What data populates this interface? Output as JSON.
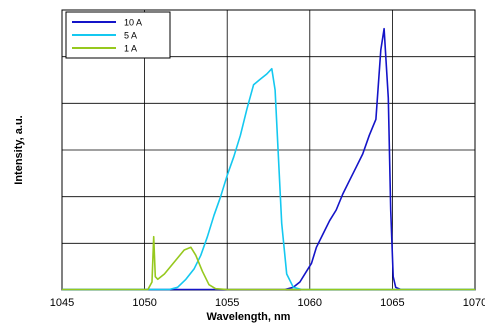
{
  "chart_data": {
    "type": "line",
    "title": "",
    "xlabel": "Wavelength, nm",
    "ylabel": "Intensity, a.u.",
    "xlim": [
      1045,
      1070
    ],
    "x_ticks": [
      1045,
      1050,
      1055,
      1060,
      1065,
      1070
    ],
    "ylim": [
      0,
      1.05
    ],
    "y_tick_labels_shown": false,
    "grid": true,
    "legend_position": "top-left",
    "series": [
      {
        "name": "10 A",
        "color": "#1414c8",
        "points": [
          [
            1045,
            0.002
          ],
          [
            1058.5,
            0.002
          ],
          [
            1059.0,
            0.01
          ],
          [
            1059.4,
            0.03
          ],
          [
            1059.8,
            0.07
          ],
          [
            1060.1,
            0.1
          ],
          [
            1060.4,
            0.16
          ],
          [
            1060.8,
            0.21
          ],
          [
            1061.2,
            0.26
          ],
          [
            1061.6,
            0.3
          ],
          [
            1062.0,
            0.36
          ],
          [
            1062.4,
            0.41
          ],
          [
            1062.8,
            0.46
          ],
          [
            1063.2,
            0.51
          ],
          [
            1063.6,
            0.58
          ],
          [
            1064.0,
            0.64
          ],
          [
            1064.3,
            0.9
          ],
          [
            1064.5,
            0.98
          ],
          [
            1064.75,
            0.72
          ],
          [
            1064.9,
            0.3
          ],
          [
            1065.05,
            0.05
          ],
          [
            1065.2,
            0.01
          ],
          [
            1065.5,
            0.002
          ],
          [
            1070,
            0.002
          ]
        ]
      },
      {
        "name": "5 A",
        "color": "#14c8f0",
        "points": [
          [
            1045,
            0.002
          ],
          [
            1051.5,
            0.002
          ],
          [
            1052.0,
            0.01
          ],
          [
            1052.5,
            0.04
          ],
          [
            1053.0,
            0.08
          ],
          [
            1053.4,
            0.13
          ],
          [
            1053.8,
            0.2
          ],
          [
            1054.2,
            0.28
          ],
          [
            1054.6,
            0.35
          ],
          [
            1055.0,
            0.43
          ],
          [
            1055.4,
            0.5
          ],
          [
            1055.8,
            0.58
          ],
          [
            1056.2,
            0.68
          ],
          [
            1056.6,
            0.77
          ],
          [
            1057.0,
            0.79
          ],
          [
            1057.4,
            0.81
          ],
          [
            1057.7,
            0.83
          ],
          [
            1057.9,
            0.75
          ],
          [
            1058.1,
            0.5
          ],
          [
            1058.3,
            0.25
          ],
          [
            1058.6,
            0.06
          ],
          [
            1059.0,
            0.01
          ],
          [
            1059.5,
            0.002
          ],
          [
            1070,
            0.002
          ]
        ]
      },
      {
        "name": "1 A",
        "color": "#96c81e",
        "points": [
          [
            1045,
            0.002
          ],
          [
            1050.2,
            0.002
          ],
          [
            1050.45,
            0.03
          ],
          [
            1050.55,
            0.2
          ],
          [
            1050.65,
            0.05
          ],
          [
            1050.8,
            0.04
          ],
          [
            1051.2,
            0.06
          ],
          [
            1051.6,
            0.09
          ],
          [
            1052.0,
            0.12
          ],
          [
            1052.4,
            0.15
          ],
          [
            1052.8,
            0.16
          ],
          [
            1053.1,
            0.13
          ],
          [
            1053.5,
            0.07
          ],
          [
            1053.9,
            0.02
          ],
          [
            1054.3,
            0.005
          ],
          [
            1055.0,
            0.002
          ],
          [
            1070,
            0.002
          ]
        ]
      }
    ]
  }
}
